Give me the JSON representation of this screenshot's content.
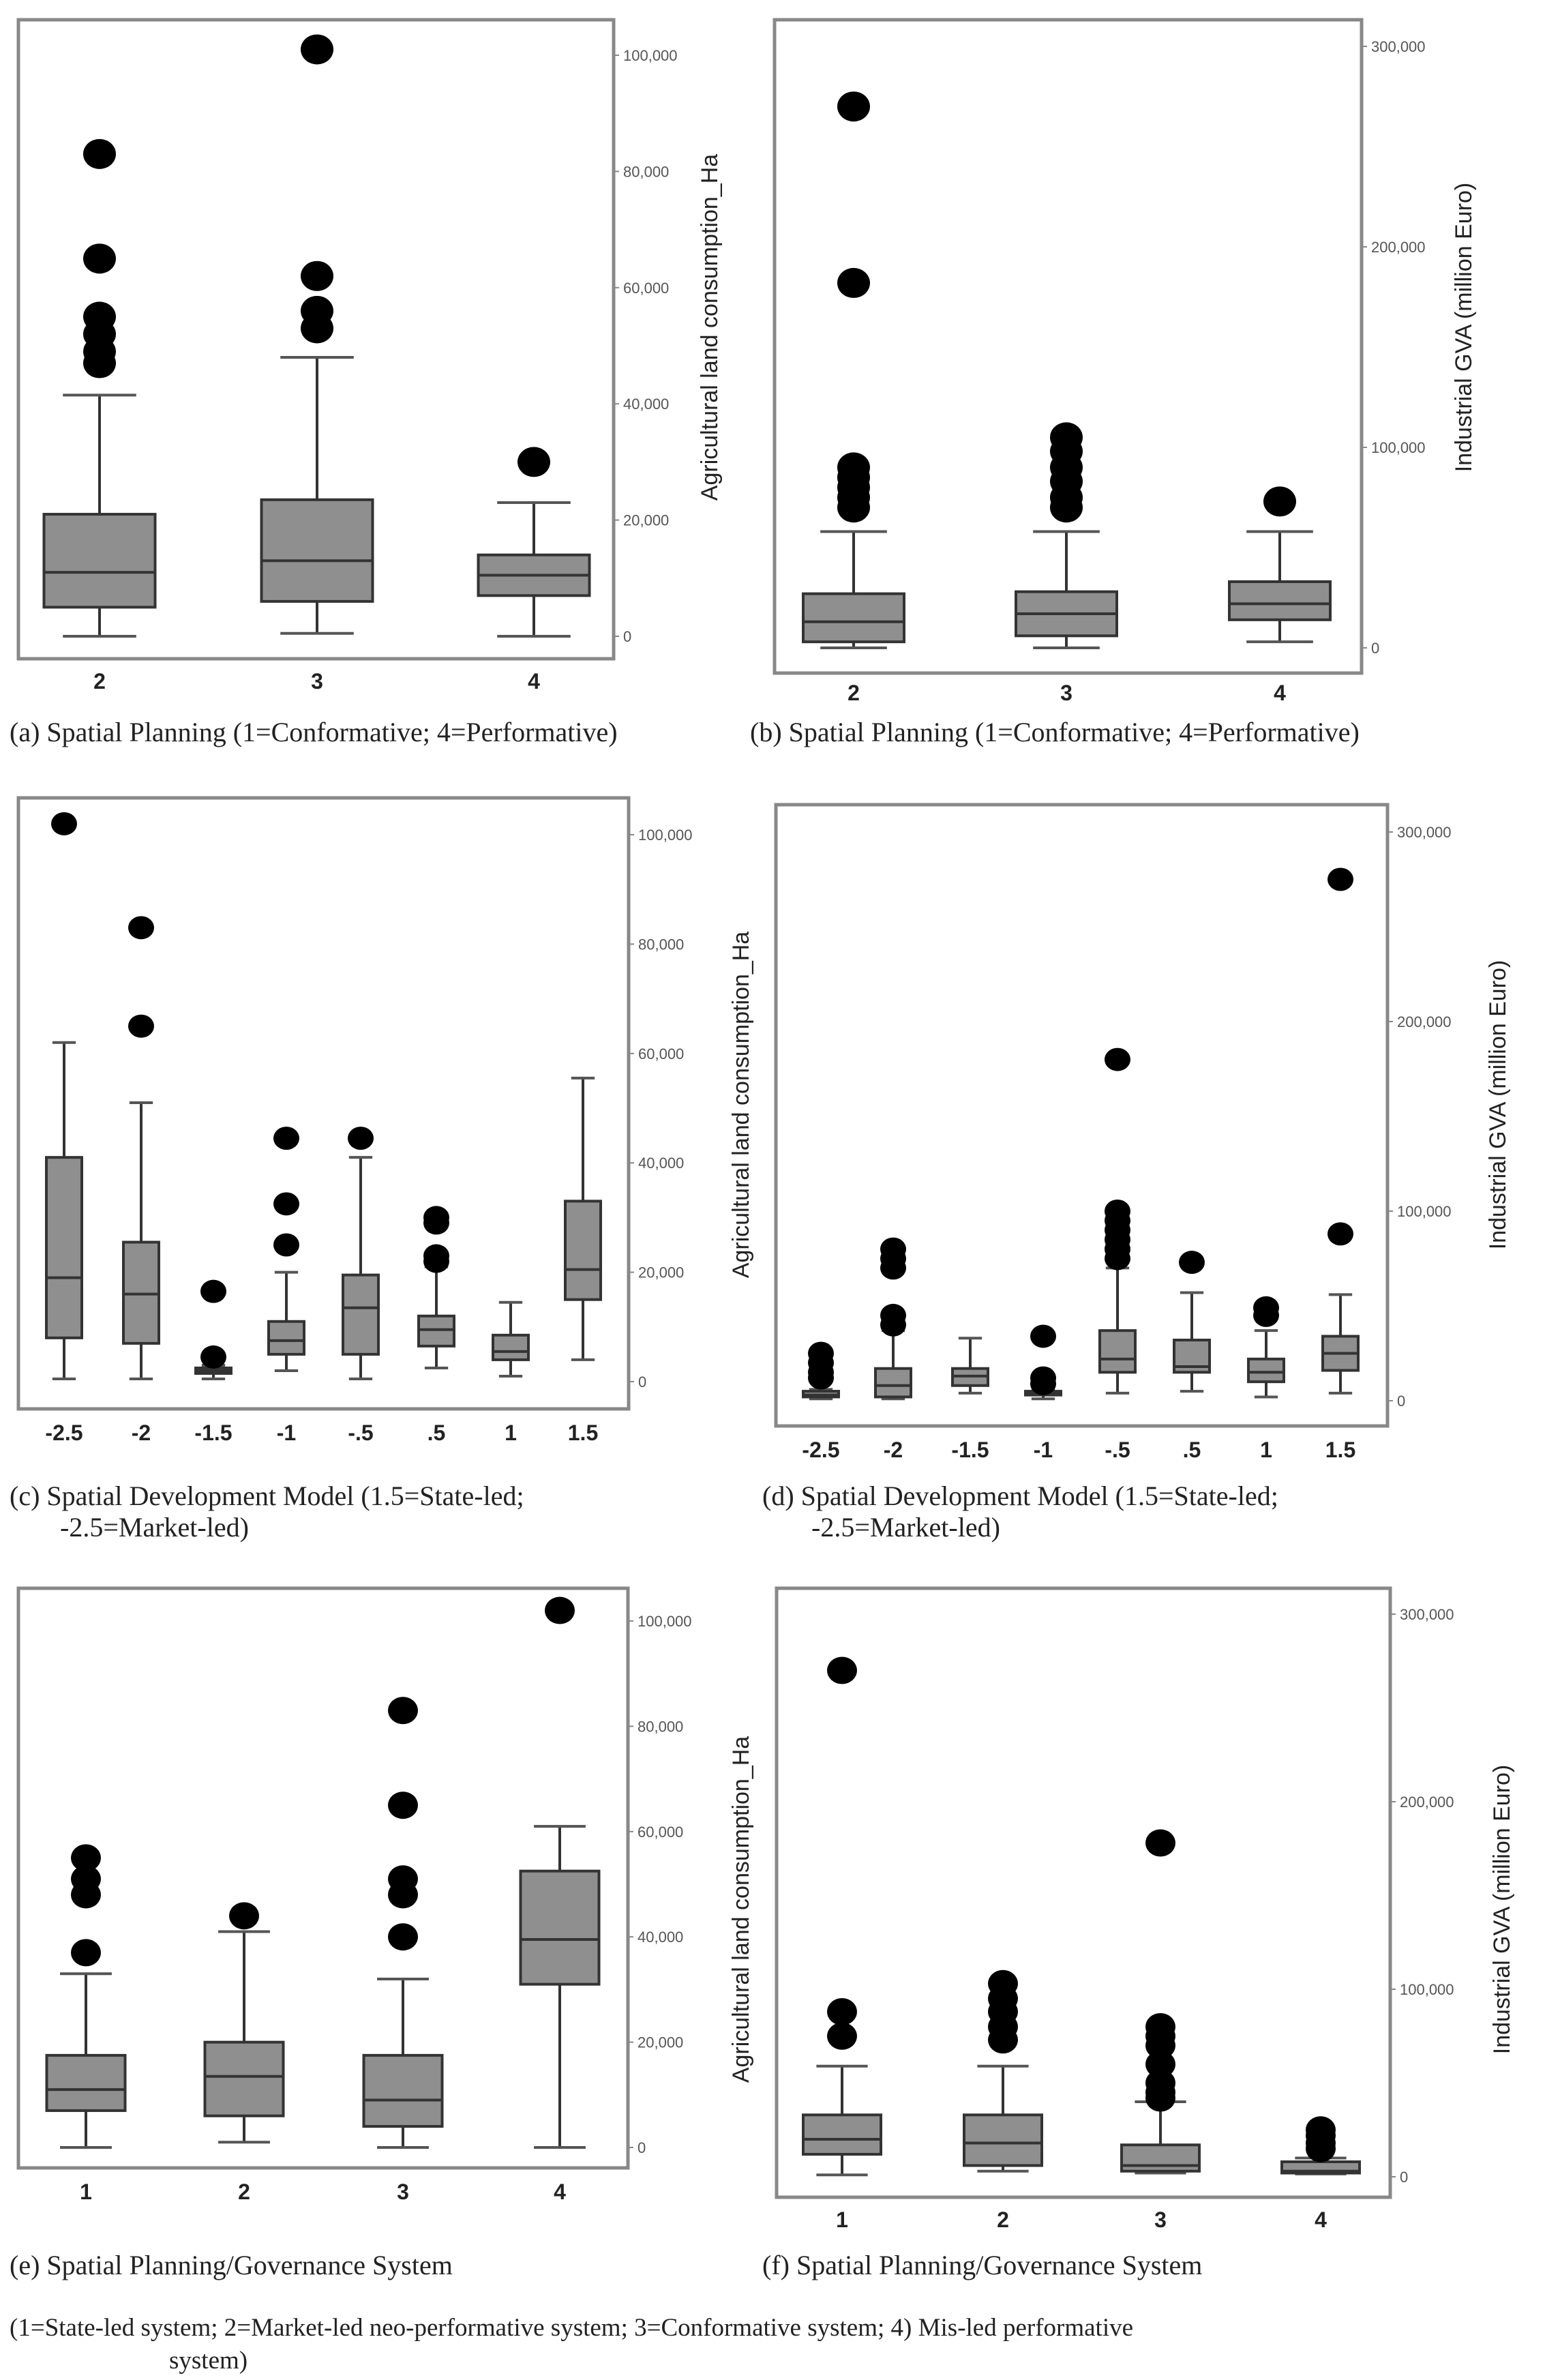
{
  "chart_data": [
    {
      "id": "a",
      "type": "boxplot",
      "caption": "(a) Spatial Planning (1=Conformative; 4=Performative)",
      "xlabel": "",
      "ylabel": "Agricultural land consumption_Ha",
      "ylim": [
        0,
        100000
      ],
      "yticks": [
        0,
        20000,
        40000,
        60000,
        80000,
        100000
      ],
      "ytick_labels": [
        "0",
        "20,000",
        "40,000",
        "60,000",
        "80,000",
        "100,000"
      ],
      "categories": [
        "2",
        "3",
        "4"
      ],
      "boxes": [
        {
          "min": 0,
          "q1": 5000,
          "median": 11000,
          "q3": 21000,
          "max": 41500,
          "outliers": [
            83000,
            65000,
            55000,
            52000,
            49000,
            47000
          ]
        },
        {
          "min": 500,
          "q1": 6000,
          "median": 13000,
          "q3": 23500,
          "max": 48000,
          "outliers": [
            101000,
            62000,
            56000,
            53000
          ]
        },
        {
          "min": 0,
          "q1": 7000,
          "median": 10500,
          "q3": 14000,
          "max": 23000,
          "outliers": [
            30000
          ]
        }
      ]
    },
    {
      "id": "b",
      "type": "boxplot",
      "caption": "(b) Spatial Planning (1=Conformative; 4=Performative)",
      "xlabel": "",
      "ylabel": "Industrial GVA (million Euro)",
      "ylim": [
        0,
        300000
      ],
      "yticks": [
        0,
        100000,
        200000,
        300000
      ],
      "ytick_labels": [
        "0",
        "100,000",
        "200,000",
        "300,000"
      ],
      "categories": [
        "2",
        "3",
        "4"
      ],
      "boxes": [
        {
          "min": 0,
          "q1": 3000,
          "median": 13000,
          "q3": 27000,
          "max": 58000,
          "outliers": [
            270000,
            182000,
            90000,
            85000,
            80000,
            75000,
            70000
          ]
        },
        {
          "min": 0,
          "q1": 6000,
          "median": 17000,
          "q3": 28000,
          "max": 58000,
          "outliers": [
            105000,
            98000,
            90000,
            83000,
            75000,
            70000
          ]
        },
        {
          "min": 3000,
          "q1": 14000,
          "median": 22000,
          "q3": 33000,
          "max": 58000,
          "outliers": [
            73000
          ]
        }
      ]
    },
    {
      "id": "c",
      "type": "boxplot",
      "caption": "(c) Spatial Development Model (1.5=State-led;",
      "caption_line2": "-2.5=Market-led)",
      "xlabel": "",
      "ylabel": "Agricultural land consumption_Ha",
      "ylim": [
        0,
        100000
      ],
      "yticks": [
        0,
        20000,
        40000,
        60000,
        80000,
        100000
      ],
      "ytick_labels": [
        "0",
        "20,000",
        "40,000",
        "60,000",
        "80,000",
        "100,000"
      ],
      "categories": [
        "-2.5",
        "-2",
        "-1.5",
        "-1",
        "-.5",
        ".5",
        "1",
        "1.5"
      ],
      "boxes": [
        {
          "min": 500,
          "q1": 8000,
          "median": 19000,
          "q3": 41000,
          "max": 62000,
          "outliers": [
            102000
          ]
        },
        {
          "min": 500,
          "q1": 7000,
          "median": 16000,
          "q3": 25500,
          "max": 51000,
          "outliers": [
            83000,
            65000
          ]
        },
        {
          "min": 500,
          "q1": 1500,
          "median": 2000,
          "q3": 2500,
          "max": 3000,
          "outliers": [
            16500,
            4500
          ]
        },
        {
          "min": 2000,
          "q1": 5000,
          "median": 7500,
          "q3": 11000,
          "max": 20000,
          "outliers": [
            44500,
            32500,
            25000
          ]
        },
        {
          "min": 500,
          "q1": 5000,
          "median": 13500,
          "q3": 19500,
          "max": 41000,
          "outliers": [
            44500
          ]
        },
        {
          "min": 2500,
          "q1": 6500,
          "median": 9500,
          "q3": 12000,
          "max": 21000,
          "outliers": [
            30000,
            29000,
            23000,
            22000
          ]
        },
        {
          "min": 1000,
          "q1": 4000,
          "median": 5500,
          "q3": 8500,
          "max": 14500,
          "outliers": []
        },
        {
          "min": 4000,
          "q1": 15000,
          "median": 20500,
          "q3": 33000,
          "max": 55500,
          "outliers": []
        }
      ]
    },
    {
      "id": "d",
      "type": "boxplot",
      "caption": "(d) Spatial Development Model (1.5=State-led;",
      "caption_line2": "-2.5=Market-led)",
      "xlabel": "",
      "ylabel": "Industrial GVA (million Euro)",
      "ylim": [
        0,
        300000
      ],
      "yticks": [
        0,
        100000,
        200000,
        300000
      ],
      "ytick_labels": [
        "0",
        "100,000",
        "200,000",
        "300,000"
      ],
      "categories": [
        "-2.5",
        "-2",
        "-1.5",
        "-1",
        "-.5",
        ".5",
        "1",
        "1.5"
      ],
      "boxes": [
        {
          "min": 1000,
          "q1": 2000,
          "median": 3000,
          "q3": 5000,
          "max": 6000,
          "outliers": [
            25000,
            20000,
            15000,
            12000
          ]
        },
        {
          "min": 1000,
          "q1": 2000,
          "median": 8000,
          "q3": 17000,
          "max": 37000,
          "outliers": [
            80000,
            75000,
            70000,
            45000,
            40000
          ]
        },
        {
          "min": 4000,
          "q1": 8000,
          "median": 13000,
          "q3": 17000,
          "max": 33000,
          "outliers": []
        },
        {
          "min": 1000,
          "q1": 3000,
          "median": 4000,
          "q3": 5000,
          "max": 6000,
          "outliers": [
            34000,
            12000,
            9000
          ]
        },
        {
          "min": 4000,
          "q1": 15000,
          "median": 22000,
          "q3": 37000,
          "max": 70000,
          "outliers": [
            180000,
            100000,
            95000,
            90000,
            85000,
            80000,
            75000
          ]
        },
        {
          "min": 5000,
          "q1": 15000,
          "median": 18000,
          "q3": 32000,
          "max": 57000,
          "outliers": [
            73000
          ]
        },
        {
          "min": 2000,
          "q1": 10000,
          "median": 15000,
          "q3": 22000,
          "max": 37000,
          "outliers": [
            49000,
            45000
          ]
        },
        {
          "min": 4000,
          "q1": 16000,
          "median": 25000,
          "q3": 34000,
          "max": 56000,
          "outliers": [
            275000,
            88000
          ]
        }
      ]
    },
    {
      "id": "e",
      "type": "boxplot",
      "caption": "(e) Spatial Planning/Governance System",
      "xlabel": "",
      "ylabel": "Agricultural land consumption_Ha",
      "ylim": [
        0,
        100000
      ],
      "yticks": [
        0,
        20000,
        40000,
        60000,
        80000,
        100000
      ],
      "ytick_labels": [
        "0",
        "20,000",
        "40,000",
        "60,000",
        "80,000",
        "100,000"
      ],
      "categories": [
        "1",
        "2",
        "3",
        "4"
      ],
      "boxes": [
        {
          "min": 0,
          "q1": 7000,
          "median": 11000,
          "q3": 17500,
          "max": 33000,
          "outliers": [
            55000,
            51000,
            48000,
            37000
          ]
        },
        {
          "min": 1000,
          "q1": 6000,
          "median": 13500,
          "q3": 20000,
          "max": 41000,
          "outliers": [
            44000
          ]
        },
        {
          "min": 0,
          "q1": 4000,
          "median": 9000,
          "q3": 17500,
          "max": 32000,
          "outliers": [
            83000,
            65000,
            51000,
            48000,
            40000
          ]
        },
        {
          "min": 0,
          "q1": 31000,
          "median": 39500,
          "q3": 52500,
          "max": 61000,
          "outliers": [
            102000
          ]
        }
      ]
    },
    {
      "id": "f",
      "type": "boxplot",
      "caption": "(f) Spatial Planning/Governance System",
      "xlabel": "",
      "ylabel": "Industrial GVA (million Euro)",
      "ylim": [
        0,
        300000
      ],
      "yticks": [
        0,
        100000,
        200000,
        300000
      ],
      "ytick_labels": [
        "0",
        "100,000",
        "200,000",
        "300,000"
      ],
      "categories": [
        "1",
        "2",
        "3",
        "4"
      ],
      "boxes": [
        {
          "min": 1000,
          "q1": 12000,
          "median": 20000,
          "q3": 33000,
          "max": 59000,
          "outliers": [
            270000,
            88000,
            75000
          ]
        },
        {
          "min": 3000,
          "q1": 6000,
          "median": 18000,
          "q3": 33000,
          "max": 59000,
          "outliers": [
            103000,
            95000,
            88000,
            80000,
            73000
          ]
        },
        {
          "min": 2000,
          "q1": 3000,
          "median": 6000,
          "q3": 17000,
          "max": 40000,
          "outliers": [
            178000,
            80000,
            75000,
            70000,
            60000,
            50000,
            45000,
            42000
          ]
        },
        {
          "min": 1500,
          "q1": 2000,
          "median": 3000,
          "q3": 8000,
          "max": 10000,
          "outliers": [
            25000,
            22000,
            18000,
            15000
          ]
        }
      ]
    }
  ],
  "footnote": {
    "line1": "(1=State-led system;  2=Market-led neo-performative system; 3=Conformative system; 4) Mis-led performative",
    "line2": "system)"
  },
  "colors": {
    "box_fill": "#8f8f8f",
    "box_stroke": "#333333",
    "outlier": "#000000",
    "frame": "#888888"
  }
}
